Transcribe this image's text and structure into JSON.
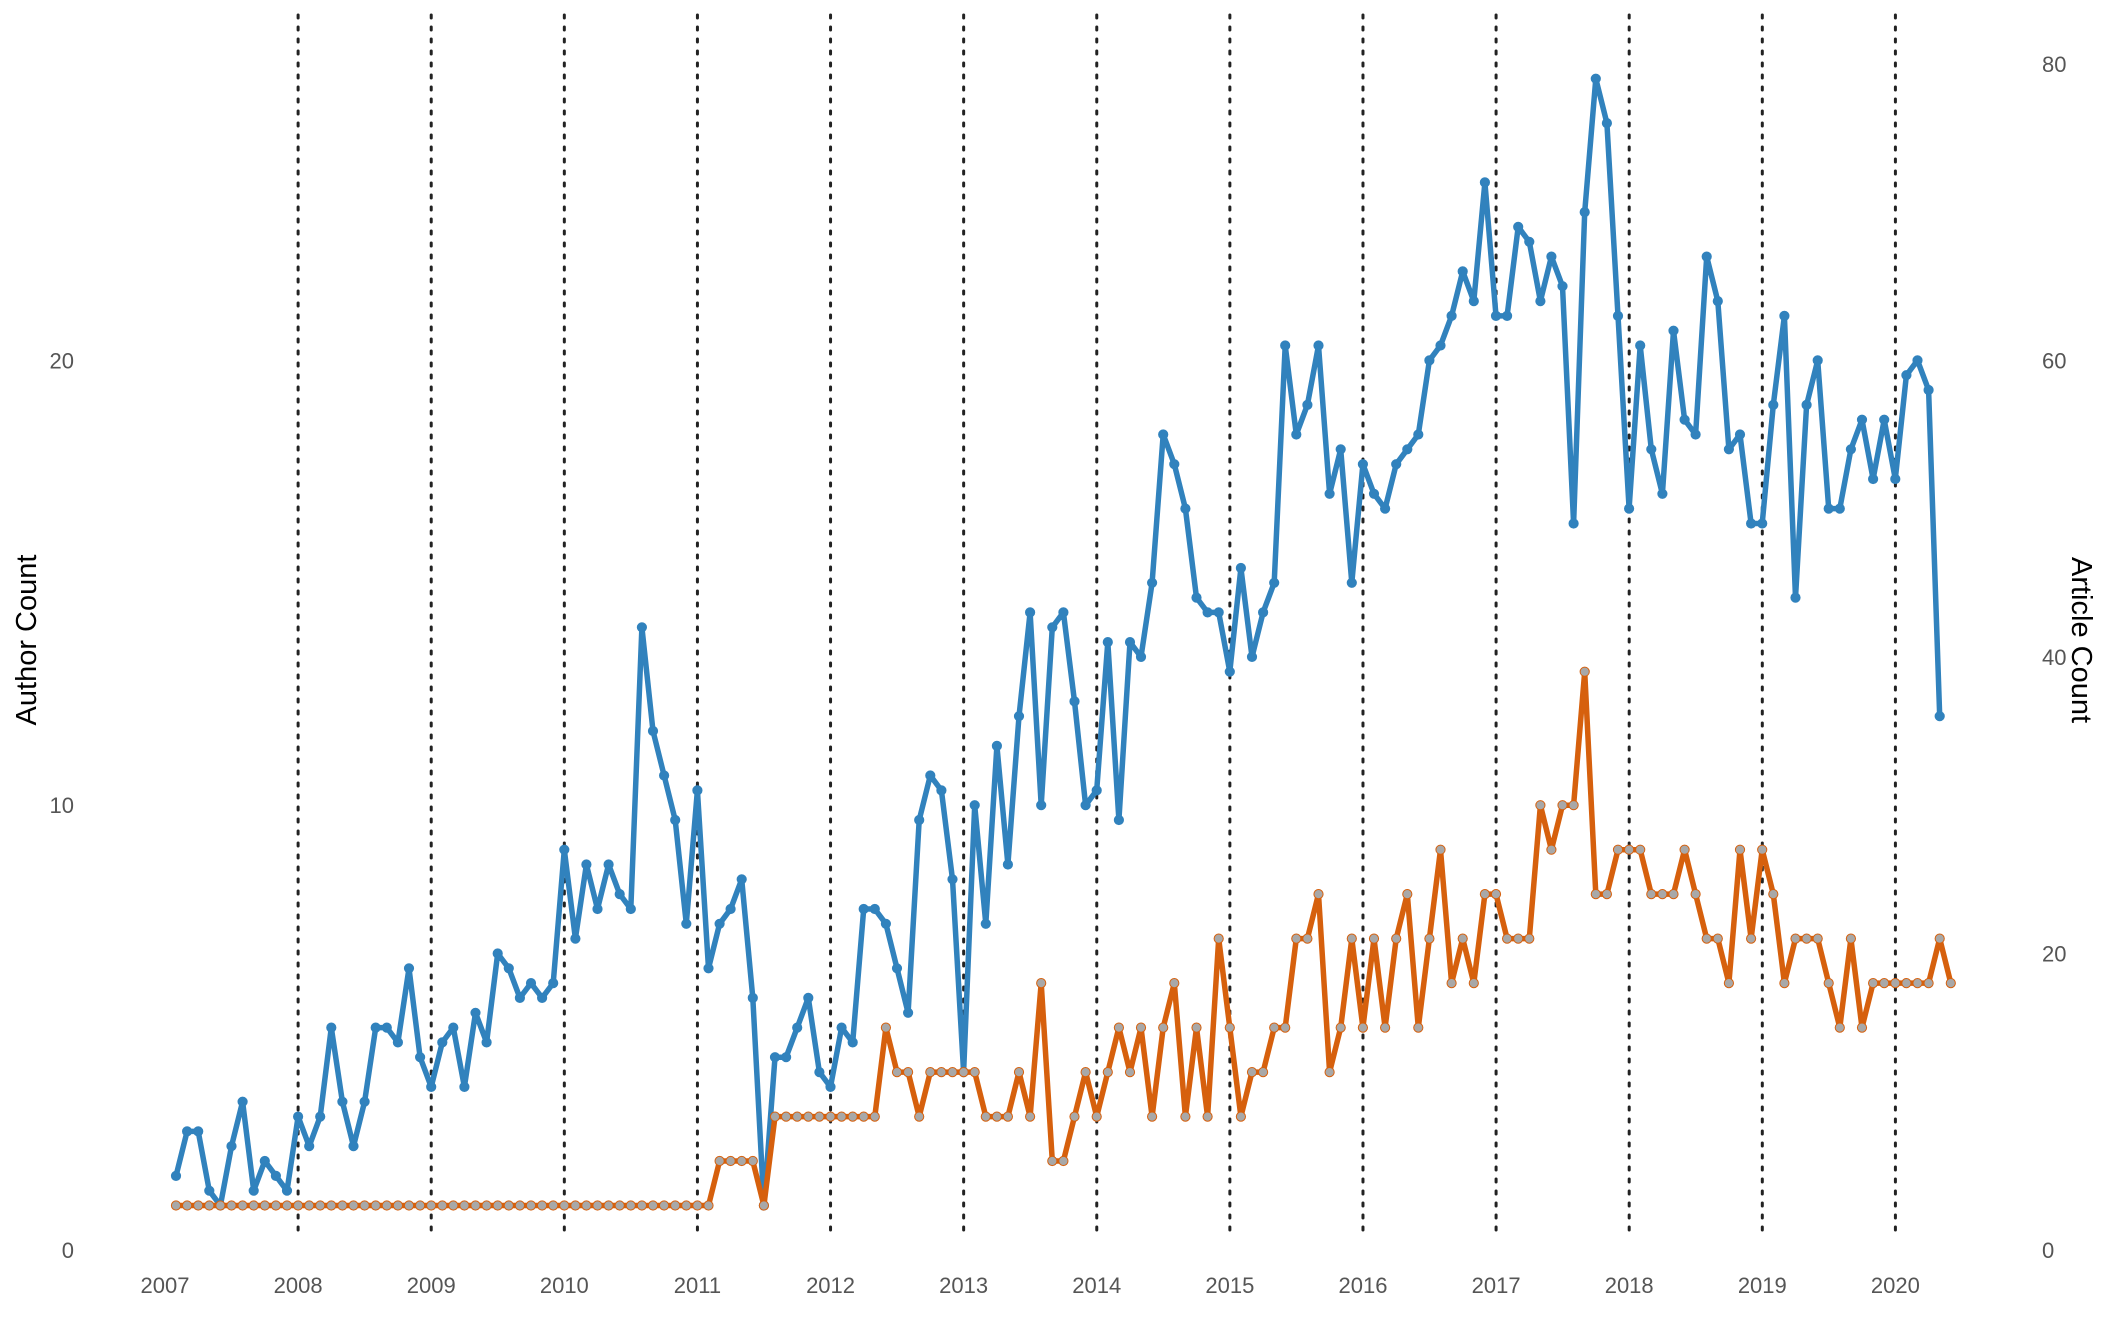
{
  "chart_data": {
    "type": "line",
    "title": "",
    "xlabel": "",
    "ylabel": "Author Count",
    "y2label": "Article Count",
    "x_start": 2007.083,
    "x_step": 0.08333,
    "xlim": [
      2007,
      2020.35
    ],
    "ylim": [
      0,
      27
    ],
    "y2lim": [
      0,
      81
    ],
    "xticks": [
      "2007",
      "2008",
      "2009",
      "2010",
      "2011",
      "2012",
      "2013",
      "2014",
      "2015",
      "2016",
      "2017",
      "2018",
      "2019",
      "2020"
    ],
    "yticks": [
      "0",
      "10",
      "20"
    ],
    "y2ticks": [
      "0",
      "20",
      "40",
      "60",
      "80"
    ],
    "vlines": [
      2008,
      2009,
      2010,
      2011,
      2012,
      2013,
      2014,
      2015,
      2016,
      2017,
      2018,
      2019,
      2020
    ],
    "series": [
      {
        "name": "Article Count",
        "axis": "right",
        "color": "#3182bd",
        "marker_color": "#3182bd",
        "values": [
          5,
          8,
          8,
          4,
          3,
          7,
          10,
          4,
          6,
          5,
          4,
          9,
          7,
          9,
          15,
          10,
          7,
          10,
          15,
          15,
          14,
          19,
          13,
          11,
          14,
          15,
          11,
          16,
          14,
          20,
          19,
          17,
          18,
          17,
          18,
          27,
          21,
          26,
          23,
          26,
          24,
          23,
          42,
          35,
          32,
          29,
          22,
          31,
          19,
          22,
          23,
          25,
          17,
          3,
          13,
          13,
          15,
          17,
          12,
          11,
          15,
          14,
          23,
          23,
          22,
          19,
          16,
          29,
          32,
          31,
          25,
          12,
          30,
          22,
          34,
          26,
          36,
          43,
          30,
          42,
          43,
          37,
          30,
          31,
          41,
          29,
          41,
          40,
          45,
          55,
          53,
          50,
          44,
          43,
          43,
          39,
          46,
          40,
          43,
          45,
          61,
          55,
          57,
          61,
          51,
          54,
          45,
          53,
          51,
          50,
          53,
          54,
          55,
          60,
          61,
          63,
          66,
          64,
          72,
          63,
          63,
          69,
          68,
          64,
          67,
          65,
          49,
          70,
          79,
          76,
          63,
          50,
          61,
          54,
          51,
          62,
          56,
          55,
          67,
          64,
          54,
          55,
          49,
          49,
          57,
          63,
          44,
          57,
          60,
          50,
          50,
          54,
          56,
          52,
          56,
          52,
          59,
          60,
          58,
          36
        ]
      },
      {
        "name": "Author Count",
        "axis": "left",
        "color": "#d6600d",
        "marker_color": "#a8a8a8",
        "values": [
          1,
          1,
          1,
          1,
          1,
          1,
          1,
          1,
          1,
          1,
          1,
          1,
          1,
          1,
          1,
          1,
          1,
          1,
          1,
          1,
          1,
          1,
          1,
          1,
          1,
          1,
          1,
          1,
          1,
          1,
          1,
          1,
          1,
          1,
          1,
          1,
          1,
          1,
          1,
          1,
          1,
          1,
          1,
          1,
          1,
          1,
          1,
          1,
          1,
          2,
          2,
          2,
          2,
          1,
          3,
          3,
          3,
          3,
          3,
          3,
          3,
          3,
          3,
          3,
          5,
          4,
          4,
          3,
          4,
          4,
          4,
          4,
          4,
          3,
          3,
          3,
          4,
          3,
          6,
          2,
          2,
          3,
          4,
          3,
          4,
          5,
          4,
          5,
          3,
          5,
          6,
          3,
          5,
          3,
          7,
          5,
          3,
          4,
          4,
          5,
          5,
          7,
          7,
          8,
          4,
          5,
          7,
          5,
          7,
          5,
          7,
          8,
          5,
          7,
          9,
          6,
          7,
          6,
          8,
          8,
          7,
          7,
          7,
          10,
          9,
          10,
          10,
          13,
          8,
          8,
          9,
          9,
          9,
          8,
          8,
          8,
          9,
          8,
          7,
          7,
          6,
          9,
          7,
          9,
          8,
          6,
          7,
          7,
          7,
          6,
          5,
          7,
          5,
          6,
          6,
          6,
          6,
          6,
          6,
          7,
          6
        ]
      }
    ]
  }
}
